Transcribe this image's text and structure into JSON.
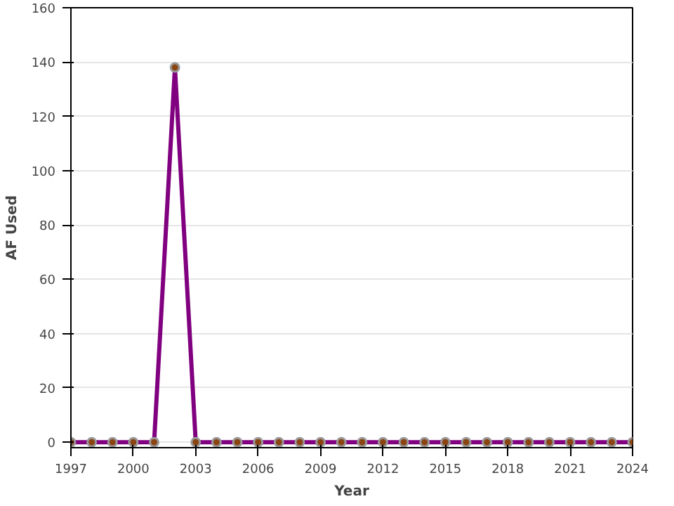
{
  "chart_data": {
    "type": "line",
    "xlabel": "Year",
    "ylabel": "AF Used",
    "x": [
      1997,
      1998,
      1999,
      2000,
      2001,
      2002,
      2003,
      2004,
      2005,
      2006,
      2007,
      2008,
      2009,
      2010,
      2011,
      2012,
      2013,
      2014,
      2015,
      2016,
      2017,
      2018,
      2019,
      2020,
      2021,
      2022,
      2023,
      2024
    ],
    "series": [
      {
        "color": "#800080",
        "values": [
          0,
          0,
          0,
          0,
          0,
          138,
          0,
          0,
          0,
          0,
          0,
          0,
          0,
          0,
          0,
          0,
          0,
          0,
          0,
          0,
          0,
          0,
          0,
          0,
          0,
          0,
          0,
          0
        ]
      }
    ],
    "xlim": [
      1997,
      2024
    ],
    "xticks": [
      1997,
      2000,
      2003,
      2006,
      2009,
      2012,
      2015,
      2018,
      2021,
      2024
    ],
    "ylim": [
      -2,
      160
    ],
    "yticks": [
      0,
      20,
      40,
      60,
      80,
      100,
      120,
      140,
      160
    ],
    "grid": "y",
    "marker": "circle",
    "line_style": "solid"
  }
}
